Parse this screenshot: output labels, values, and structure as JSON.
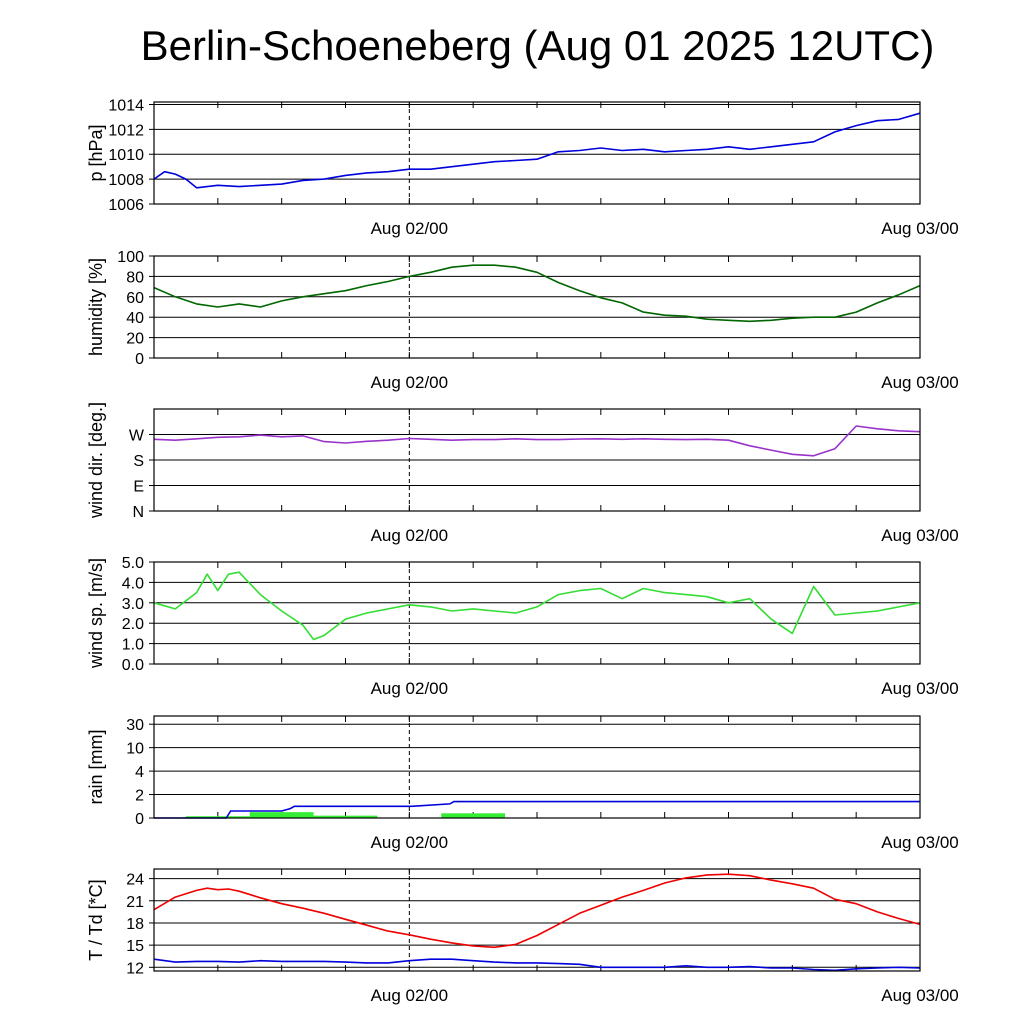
{
  "title": "Berlin-Schoeneberg (Aug 01 2025 12UTC)",
  "time_axis": {
    "labels": [
      "Aug 02/00",
      "Aug 03/00"
    ],
    "range_hours": [
      0,
      36
    ],
    "label_hours": [
      12,
      36
    ],
    "marker_hour": 12
  },
  "chart_data": [
    {
      "type": "line",
      "ylabel": "p [hPa]",
      "ylim": [
        1006,
        1014.2
      ],
      "yticks": [
        1006,
        1008,
        1010,
        1012,
        1014
      ],
      "ytick_labels": [
        "1006",
        "1008",
        "1010",
        "1012",
        "1014"
      ],
      "color": "#0000dd",
      "series": [
        {
          "x": [
            0,
            0.5,
            1,
            1.5,
            2,
            3,
            4,
            5,
            6,
            7,
            8,
            9,
            10,
            11,
            12,
            13,
            14,
            15,
            16,
            17,
            18,
            19,
            20,
            21,
            22,
            23,
            24,
            25,
            26,
            27,
            28,
            29,
            30,
            31,
            32,
            33,
            34,
            35,
            36
          ],
          "values": [
            1008.0,
            1008.6,
            1008.4,
            1008.0,
            1007.3,
            1007.5,
            1007.4,
            1007.5,
            1007.6,
            1007.9,
            1008.0,
            1008.3,
            1008.5,
            1008.6,
            1008.8,
            1008.8,
            1009.0,
            1009.2,
            1009.4,
            1009.5,
            1009.6,
            1010.2,
            1010.3,
            1010.5,
            1010.3,
            1010.4,
            1010.2,
            1010.3,
            1010.4,
            1010.6,
            1010.4,
            1010.6,
            1010.8,
            1011.0,
            1011.8,
            1012.3,
            1012.7,
            1012.8,
            1013.3
          ]
        }
      ]
    },
    {
      "type": "line",
      "ylabel": "humidity [%]",
      "ylim": [
        0,
        100
      ],
      "yticks": [
        0,
        20,
        40,
        60,
        80,
        100
      ],
      "ytick_labels": [
        "0",
        "20",
        "40",
        "60",
        "80",
        "100"
      ],
      "color": "#006600",
      "series": [
        {
          "x": [
            0,
            1,
            2,
            3,
            4,
            5,
            6,
            7,
            8,
            9,
            10,
            11,
            12,
            13,
            14,
            15,
            16,
            17,
            18,
            19,
            20,
            21,
            22,
            23,
            24,
            25,
            26,
            27,
            28,
            29,
            30,
            31,
            32,
            33,
            34,
            35,
            36
          ],
          "values": [
            69,
            60,
            53,
            50,
            53,
            50,
            56,
            60,
            63,
            66,
            71,
            75,
            80,
            84,
            89,
            91,
            91,
            89,
            84,
            74,
            66,
            59,
            54,
            45,
            42,
            41,
            38,
            37,
            36,
            37,
            39,
            40,
            40,
            45,
            54,
            62,
            71
          ]
        }
      ]
    },
    {
      "type": "line",
      "ylabel": "wind dir. [deg.]",
      "ylim": [
        0,
        360
      ],
      "yticks": [
        0,
        90,
        180,
        270
      ],
      "ytick_labels": [
        "N",
        "E",
        "S",
        "W"
      ],
      "color": "#9933cc",
      "series": [
        {
          "x": [
            0,
            1,
            2,
            3,
            4,
            5,
            6,
            7,
            8,
            9,
            10,
            11,
            12,
            13,
            14,
            15,
            16,
            17,
            18,
            19,
            20,
            21,
            22,
            23,
            24,
            25,
            26,
            27,
            28,
            29,
            30,
            31,
            32,
            33,
            34,
            35,
            36
          ],
          "values": [
            253,
            250,
            255,
            260,
            262,
            268,
            262,
            265,
            245,
            240,
            246,
            250,
            256,
            253,
            250,
            252,
            252,
            255,
            252,
            252,
            254,
            255,
            253,
            255,
            253,
            252,
            253,
            250,
            230,
            215,
            200,
            195,
            220,
            300,
            290,
            283,
            280
          ]
        }
      ]
    },
    {
      "type": "line",
      "ylabel": "wind sp. [m/s]",
      "ylim": [
        0,
        5
      ],
      "yticks": [
        0,
        1,
        2,
        3,
        4,
        5
      ],
      "ytick_labels": [
        "0.0",
        "1.0",
        "2.0",
        "3.0",
        "4.0",
        "5.0"
      ],
      "color": "#33dd33",
      "series": [
        {
          "x": [
            0,
            1,
            2,
            2.5,
            3,
            3.5,
            4,
            5,
            6,
            7,
            7.5,
            8,
            9,
            10,
            11,
            12,
            13,
            14,
            15,
            16,
            17,
            18,
            19,
            20,
            21,
            22,
            23,
            24,
            25,
            26,
            27,
            28,
            29,
            30,
            31,
            32,
            33,
            34,
            35,
            36
          ],
          "values": [
            3.0,
            2.7,
            3.5,
            4.4,
            3.6,
            4.4,
            4.5,
            3.4,
            2.6,
            1.9,
            1.2,
            1.4,
            2.2,
            2.5,
            2.7,
            2.9,
            2.8,
            2.6,
            2.7,
            2.6,
            2.5,
            2.8,
            3.4,
            3.6,
            3.7,
            3.2,
            3.7,
            3.5,
            3.4,
            3.3,
            3.0,
            3.2,
            2.2,
            1.5,
            3.8,
            2.4,
            2.5,
            2.6,
            2.8,
            3.0
          ]
        }
      ]
    },
    {
      "type": "bar+line",
      "ylabel": "rain [mm]",
      "yticks": [
        0,
        2,
        4,
        10,
        30
      ],
      "ytick_labels": [
        "0",
        "2",
        "4",
        "10",
        "30"
      ],
      "bars": {
        "color": "#33ee33",
        "items": [
          {
            "start": 1.5,
            "end": 4.5,
            "value": 0.15
          },
          {
            "start": 4.5,
            "end": 7.5,
            "value": 0.5
          },
          {
            "start": 7.5,
            "end": 10.5,
            "value": 0.2
          },
          {
            "start": 13.5,
            "end": 16.5,
            "value": 0.4
          }
        ]
      },
      "line": {
        "name": "accumulated",
        "color": "#0000dd",
        "x": [
          0,
          1.5,
          3.4,
          3.6,
          6,
          6.4,
          6.6,
          12.1,
          13.9,
          14.1,
          36
        ],
        "values": [
          0,
          0,
          0,
          0.6,
          0.6,
          0.8,
          1.0,
          1.0,
          1.2,
          1.4,
          1.4
        ]
      }
    },
    {
      "type": "line",
      "ylabel": "T / Td [*C]",
      "ylim": [
        11.5,
        25.3
      ],
      "yticks": [
        12,
        15,
        18,
        21,
        24
      ],
      "ytick_labels": [
        "12",
        "15",
        "18",
        "21",
        "24"
      ],
      "series": [
        {
          "color": "#ee0000",
          "x": [
            0,
            1,
            2,
            2.5,
            3,
            3.5,
            4,
            5,
            6,
            7,
            8,
            9,
            10,
            11,
            12,
            13,
            14,
            15,
            16,
            17,
            18,
            19,
            20,
            21,
            22,
            23,
            24,
            25,
            26,
            27,
            28,
            29,
            30,
            31,
            32,
            33,
            34,
            35,
            36
          ],
          "values": [
            19.8,
            21.5,
            22.4,
            22.7,
            22.5,
            22.6,
            22.3,
            21.4,
            20.6,
            20.0,
            19.3,
            18.5,
            17.7,
            16.9,
            16.4,
            15.8,
            15.3,
            14.9,
            14.7,
            15.1,
            16.3,
            17.8,
            19.3,
            20.4,
            21.5,
            22.4,
            23.4,
            24.1,
            24.5,
            24.6,
            24.4,
            23.8,
            23.3,
            22.7,
            21.2,
            20.6,
            19.5,
            18.6,
            17.8
          ]
        },
        {
          "color": "#0000dd",
          "x": [
            0,
            1,
            2,
            3,
            4,
            5,
            6,
            7,
            8,
            9,
            10,
            11,
            12,
            13,
            14,
            15,
            16,
            17,
            18,
            19,
            20,
            21,
            22,
            23,
            24,
            25,
            26,
            27,
            28,
            29,
            30,
            31,
            32,
            33,
            34,
            35,
            36
          ],
          "values": [
            13.1,
            12.7,
            12.8,
            12.8,
            12.7,
            12.9,
            12.8,
            12.8,
            12.8,
            12.7,
            12.6,
            12.6,
            12.9,
            13.1,
            13.1,
            12.9,
            12.7,
            12.6,
            12.6,
            12.5,
            12.4,
            12.0,
            12.0,
            12.0,
            12.0,
            12.2,
            12.0,
            12.0,
            12.1,
            11.9,
            11.9,
            11.7,
            11.6,
            11.8,
            11.9,
            12.0,
            11.9
          ]
        }
      ]
    }
  ]
}
